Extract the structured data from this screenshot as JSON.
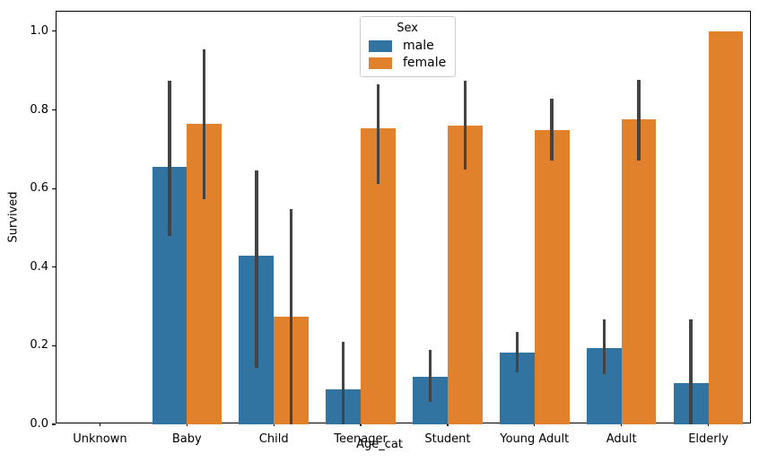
{
  "chart_data": {
    "type": "bar",
    "title": "",
    "xlabel": "Age_cat",
    "ylabel": "Survived",
    "categories": [
      "Unknown",
      "Baby",
      "Child",
      "Teenager",
      "Student",
      "Young Adult",
      "Adult",
      "Elderly"
    ],
    "series": [
      {
        "name": "male",
        "color": "#3274a1",
        "values": [
          0.0,
          0.655,
          0.43,
          0.089,
          0.121,
          0.182,
          0.193,
          0.106
        ],
        "error_low": [
          null,
          0.48,
          0.143,
          0.0,
          0.057,
          0.133,
          0.128,
          0.0
        ],
        "error_high": [
          null,
          0.875,
          0.645,
          0.21,
          0.19,
          0.235,
          0.266,
          0.267
        ]
      },
      {
        "name": "female",
        "color": "#e1812c",
        "values": [
          0.0,
          0.765,
          0.273,
          0.753,
          0.761,
          0.749,
          0.775,
          1.0
        ],
        "error_low": [
          null,
          0.573,
          0.0,
          0.612,
          0.648,
          0.671,
          0.672,
          null
        ],
        "error_high": [
          null,
          0.955,
          0.548,
          0.866,
          0.875,
          0.829,
          0.877,
          null
        ]
      }
    ],
    "yticks": [
      0.0,
      0.2,
      0.4,
      0.6,
      0.8,
      1.0
    ],
    "ytick_labels": [
      "0.0",
      "0.2",
      "0.4",
      "0.6",
      "0.8",
      "1.0"
    ],
    "ylim": [
      0,
      1.05
    ],
    "group_width_fraction": 0.8,
    "error_bar_color": "#434343",
    "grid": false,
    "legend": {
      "title": "Sex",
      "position": "upper center",
      "items": [
        "male",
        "female"
      ]
    }
  }
}
